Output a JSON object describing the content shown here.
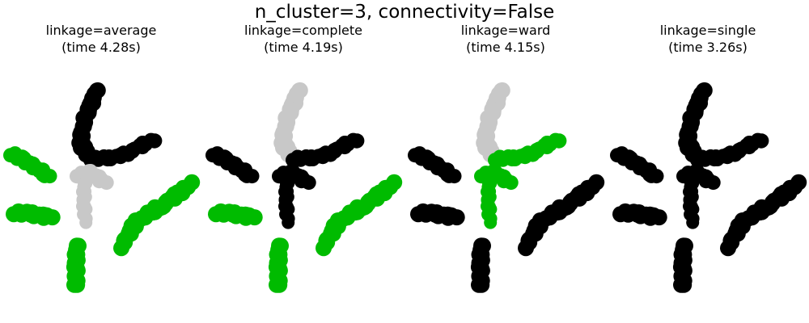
{
  "figure": {
    "title": "n_cluster=3, connectivity=False"
  },
  "colors": {
    "cluster_0": "#000000",
    "cluster_1": "#00bb00",
    "cluster_2": "#c8c8c8"
  },
  "chart_data": [
    {
      "type": "scatter",
      "title_line1": "linkage=average",
      "title_line2": "(time 4.28s)",
      "axes": "off",
      "assignment": {
        "top_stroke": "cluster_0",
        "upper_arm": "cluster_0",
        "center_blob": "cluster_2",
        "lower_center": "cluster_2",
        "left_upper": "cluster_1",
        "left_lower": "cluster_1",
        "bottom_center": "cluster_1",
        "right_diagonal": "cluster_1"
      }
    },
    {
      "type": "scatter",
      "title_line1": "linkage=complete",
      "title_line2": "(time 4.19s)",
      "axes": "off",
      "assignment": {
        "top_stroke": "cluster_2",
        "upper_arm": "cluster_0",
        "center_blob": "cluster_0",
        "lower_center": "cluster_0",
        "left_upper": "cluster_0",
        "left_lower": "cluster_1",
        "bottom_center": "cluster_1",
        "right_diagonal": "cluster_1"
      }
    },
    {
      "type": "scatter",
      "title_line1": "linkage=ward",
      "title_line2": "(time 4.15s)",
      "axes": "off",
      "assignment": {
        "top_stroke": "cluster_2",
        "upper_arm": "cluster_1",
        "center_blob": "cluster_1",
        "lower_center": "cluster_1",
        "left_upper": "cluster_0",
        "left_lower": "cluster_0",
        "bottom_center": "cluster_0",
        "right_diagonal": "cluster_0"
      }
    },
    {
      "type": "scatter",
      "title_line1": "linkage=single",
      "title_line2": "(time 3.26s)",
      "axes": "off",
      "assignment": {
        "top_stroke": "cluster_0",
        "upper_arm": "cluster_0",
        "center_blob": "cluster_0",
        "lower_center": "cluster_0",
        "left_upper": "cluster_0",
        "left_lower": "cluster_0",
        "bottom_center": "cluster_0",
        "right_diagonal": "cluster_0"
      }
    }
  ]
}
